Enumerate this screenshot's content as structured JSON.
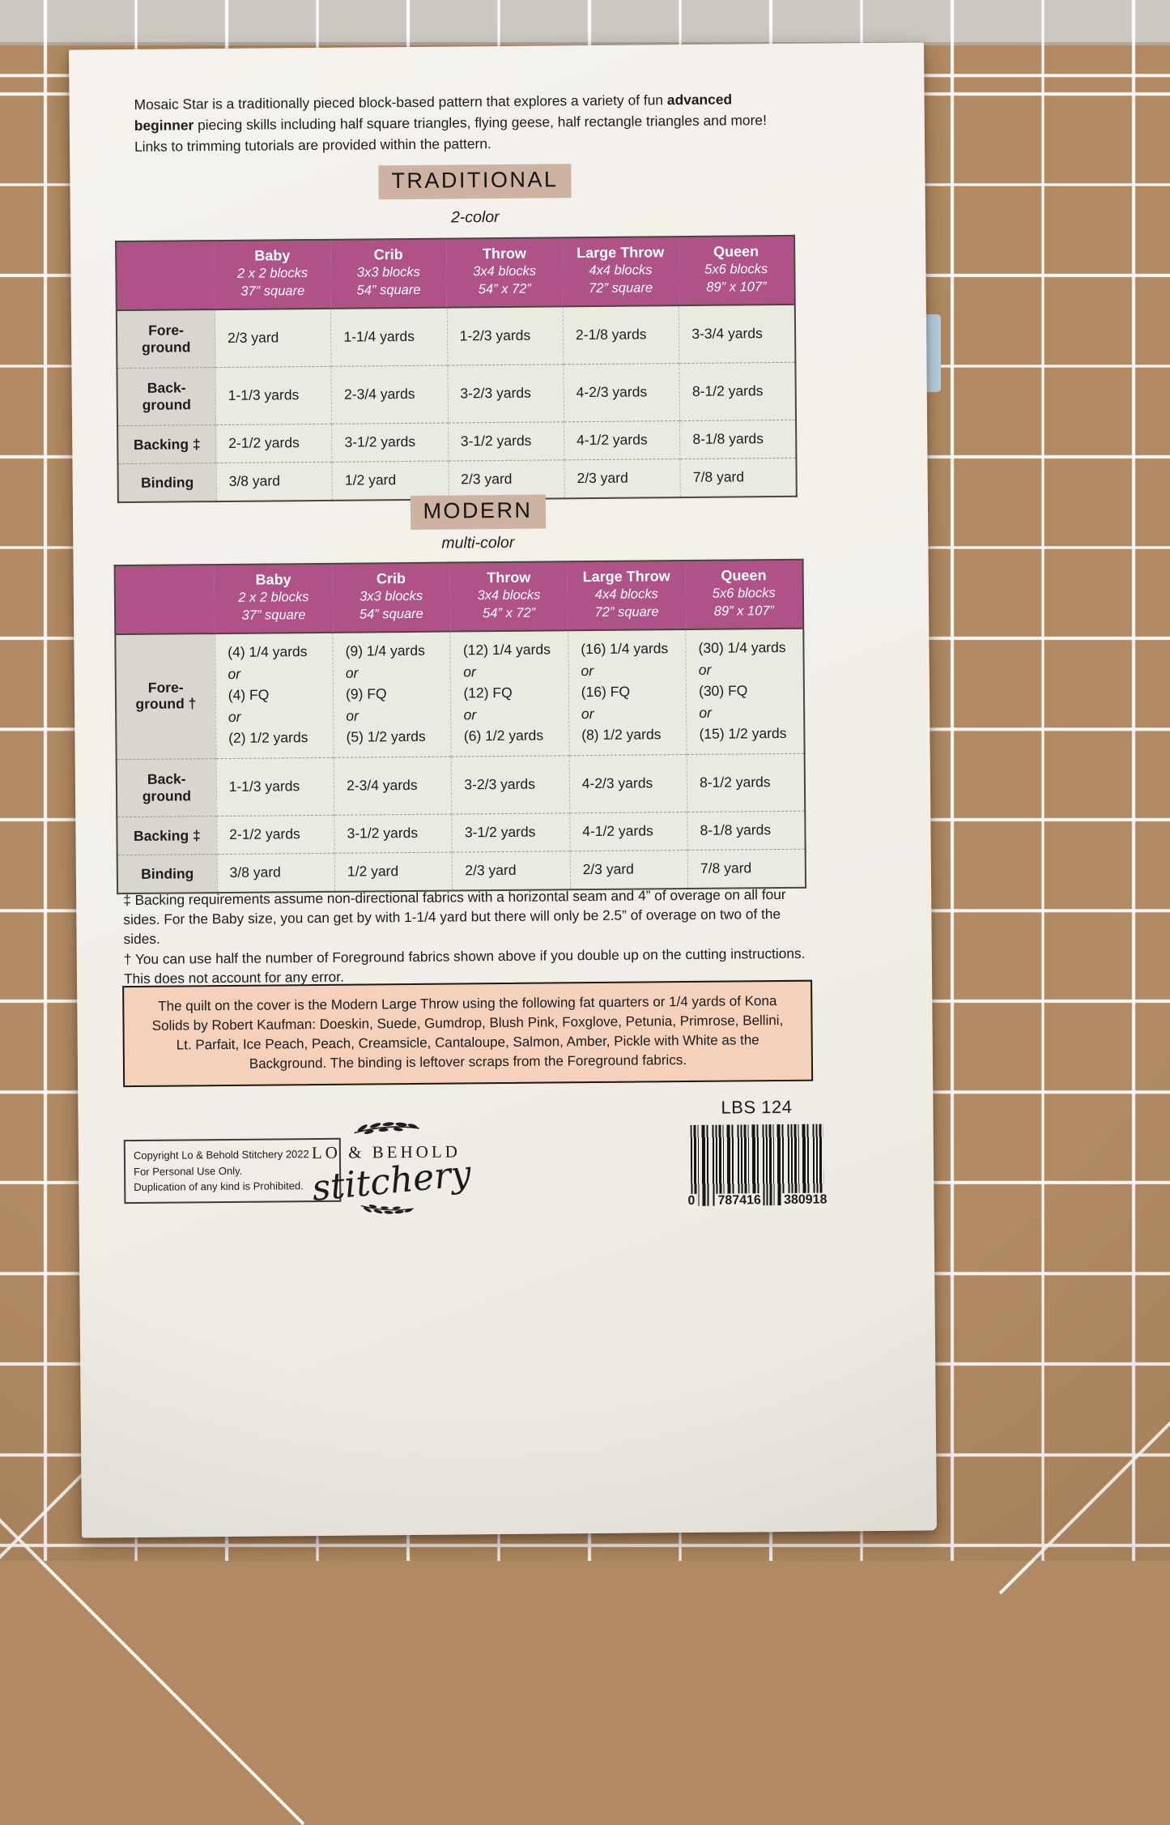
{
  "colors": {
    "table_header": "#ae5287",
    "heading_highlight": "#cfb3a2",
    "callout_bg": "#f5d0bb",
    "label_col_bg": "#d9d6cf",
    "table_bg": "#eae9e2",
    "paper": "#f2efe9",
    "mat": "#b18a63"
  },
  "intro": {
    "pre": "Mosaic Star is a traditionally pieced block-based pattern that explores a variety of fun ",
    "bold": "advanced beginner",
    "post": " piecing skills including half square triangles, flying geese, half rectangle triangles and more! Links to trimming tutorials are provided within the pattern."
  },
  "sections": [
    {
      "id": "traditional",
      "heading": "TRADITIONAL",
      "subheading": "2-color",
      "columns": [
        {
          "name": "Baby",
          "blocks": "2 x 2 blocks",
          "size": "37” square"
        },
        {
          "name": "Crib",
          "blocks": "3x3 blocks",
          "size": "54” square"
        },
        {
          "name": "Throw",
          "blocks": "3x4 blocks",
          "size": "54” x 72”"
        },
        {
          "name": "Large Throw",
          "blocks": "4x4 blocks",
          "size": "72” square"
        },
        {
          "name": "Queen",
          "blocks": "5x6 blocks",
          "size": "89” x 107”"
        }
      ],
      "rows": [
        {
          "label": [
            "Fore-",
            "ground"
          ],
          "values": [
            [
              "2/3 yard"
            ],
            [
              "1-1/4 yards"
            ],
            [
              "1-2/3 yards"
            ],
            [
              "2-1/8 yards"
            ],
            [
              "3-3/4 yards"
            ]
          ]
        },
        {
          "label": [
            "Back-",
            "ground"
          ],
          "values": [
            [
              "1-1/3 yards"
            ],
            [
              "2-3/4 yards"
            ],
            [
              "3-2/3 yards"
            ],
            [
              "4-2/3 yards"
            ],
            [
              "8-1/2 yards"
            ]
          ]
        },
        {
          "label": [
            "Backing ‡"
          ],
          "values": [
            [
              "2-1/2 yards"
            ],
            [
              "3-1/2 yards"
            ],
            [
              "3-1/2 yards"
            ],
            [
              "4-1/2 yards"
            ],
            [
              "8-1/8 yards"
            ]
          ]
        },
        {
          "label": [
            "Binding"
          ],
          "values": [
            [
              "3/8 yard"
            ],
            [
              "1/2 yard"
            ],
            [
              "2/3 yard"
            ],
            [
              "2/3 yard"
            ],
            [
              "7/8 yard"
            ]
          ]
        }
      ]
    },
    {
      "id": "modern",
      "heading": "MODERN",
      "subheading": "multi-color",
      "columns": [
        {
          "name": "Baby",
          "blocks": "2 x 2 blocks",
          "size": "37” square"
        },
        {
          "name": "Crib",
          "blocks": "3x3 blocks",
          "size": "54” square"
        },
        {
          "name": "Throw",
          "blocks": "3x4 blocks",
          "size": "54” x 72”"
        },
        {
          "name": "Large Throw",
          "blocks": "4x4 blocks",
          "size": "72” square"
        },
        {
          "name": "Queen",
          "blocks": "5x6 blocks",
          "size": "89” x 107”"
        }
      ],
      "rows": [
        {
          "label": [
            "Fore-",
            "ground †"
          ],
          "values": [
            [
              "(4) 1/4 yards",
              "or",
              "(4) FQ",
              "or",
              "(2) 1/2 yards"
            ],
            [
              "(9) 1/4 yards",
              "or",
              "(9) FQ",
              "or",
              "(5) 1/2 yards"
            ],
            [
              "(12) 1/4 yards",
              "or",
              "(12) FQ",
              "or",
              "(6) 1/2 yards"
            ],
            [
              "(16) 1/4 yards",
              "or",
              "(16) FQ",
              "or",
              "(8) 1/2 yards"
            ],
            [
              "(30) 1/4 yards",
              "or",
              "(30) FQ",
              "or",
              "(15) 1/2 yards"
            ]
          ]
        },
        {
          "label": [
            "Back-",
            "ground"
          ],
          "values": [
            [
              "1-1/3 yards"
            ],
            [
              "2-3/4 yards"
            ],
            [
              "3-2/3 yards"
            ],
            [
              "4-2/3 yards"
            ],
            [
              "8-1/2 yards"
            ]
          ]
        },
        {
          "label": [
            "Backing ‡"
          ],
          "values": [
            [
              "2-1/2 yards"
            ],
            [
              "3-1/2 yards"
            ],
            [
              "3-1/2 yards"
            ],
            [
              "4-1/2 yards"
            ],
            [
              "8-1/8 yards"
            ]
          ]
        },
        {
          "label": [
            "Binding"
          ],
          "values": [
            [
              "3/8 yard"
            ],
            [
              "1/2 yard"
            ],
            [
              "2/3 yard"
            ],
            [
              "2/3 yard"
            ],
            [
              "7/8 yard"
            ]
          ]
        }
      ]
    }
  ],
  "footnotes": [
    "‡ Backing requirements assume non-directional fabrics with a horizontal seam and 4” of overage on all four sides. For the Baby size, you can get by with 1-1/4 yard but there will only be 2.5” of overage on two of the sides.",
    "† You can use half the number of Foreground fabrics shown above if you double up on the cutting instructions. This does not account for any error."
  ],
  "callout": "The quilt on the cover is the Modern Large Throw using the following fat quarters or 1/4 yards of Kona Solids by Robert Kaufman: Doeskin, Suede, Gumdrop, Blush Pink, Foxglove, Petunia, Primrose, Bellini, Lt. Parfait, Ice Peach, Peach, Creamsicle, Cantaloupe, Salmon, Amber, Pickle with White as the Background. The binding is leftover scraps from the Foreground fabrics.",
  "footer": {
    "item_number": "LBS 124",
    "copyright": [
      "Copyright Lo & Behold Stitchery 2022",
      "For Personal Use Only.",
      "Duplication of any kind is Prohibited."
    ],
    "logo": {
      "top_text": "LO & BEHOLD",
      "script_text": "stitchery"
    },
    "barcode": [
      "0",
      "787416",
      "380918"
    ]
  }
}
